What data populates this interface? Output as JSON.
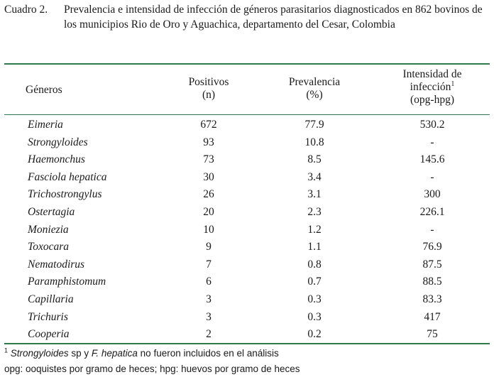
{
  "caption": {
    "label": "Cuadro 2.",
    "text": "Prevalencia e intensidad de infección de géneros parasitarios diagnosticados en 862 bovinos de los municipios Rio de Oro y Aguachica, departamento del Cesar, Colombia"
  },
  "headers": {
    "genus": "Géneros",
    "positives_line1": "Positivos",
    "positives_line2": "(n)",
    "prevalence_line1": "Prevalencia",
    "prevalence_line2": "(%)",
    "intensity_line1": "Intensidad de",
    "intensity_line2": "infección",
    "intensity_sup": "1",
    "intensity_line3": "(opg-hpg)"
  },
  "rows": [
    {
      "genus": "Eimeria",
      "positives": "672",
      "prevalence": "77.9",
      "intensity": "530.2"
    },
    {
      "genus": "Strongyloides",
      "positives": "93",
      "prevalence": "10.8",
      "intensity": "-"
    },
    {
      "genus": "Haemonchus",
      "positives": "73",
      "prevalence": "8.5",
      "intensity": "145.6"
    },
    {
      "genus": "Fasciola hepatica",
      "positives": "30",
      "prevalence": "3.4",
      "intensity": "-"
    },
    {
      "genus": "Trichostrongylus",
      "positives": "26",
      "prevalence": "3.1",
      "intensity": "300"
    },
    {
      "genus": "Ostertagia",
      "positives": "20",
      "prevalence": "2.3",
      "intensity": "226.1"
    },
    {
      "genus": "Moniezia",
      "positives": "10",
      "prevalence": "1.2",
      "intensity": "-"
    },
    {
      "genus": "Toxocara",
      "positives": "9",
      "prevalence": "1.1",
      "intensity": "76.9"
    },
    {
      "genus": "Nematodirus",
      "positives": "7",
      "prevalence": "0.8",
      "intensity": "87.5"
    },
    {
      "genus": "Paramphistomum",
      "positives": "6",
      "prevalence": "0.7",
      "intensity": "88.5"
    },
    {
      "genus": "Capillaria",
      "positives": "3",
      "prevalence": "0.3",
      "intensity": "83.3"
    },
    {
      "genus": "Trichuris",
      "positives": "3",
      "prevalence": "0.3",
      "intensity": "417"
    },
    {
      "genus": "Cooperia",
      "positives": "2",
      "prevalence": "0.2",
      "intensity": "75"
    }
  ],
  "footnotes": {
    "f1_sup": "1",
    "f1_italic_a": "Strongyloides",
    "f1_text_a": " sp y ",
    "f1_italic_b": "F. hepatica",
    "f1_text_b": " no fueron incluidos en el análisis",
    "f2": "opg: ooquistes por gramo de heces; hpg: huevos por gramo de heces"
  },
  "colors": {
    "rule": "#2f7a4a"
  }
}
